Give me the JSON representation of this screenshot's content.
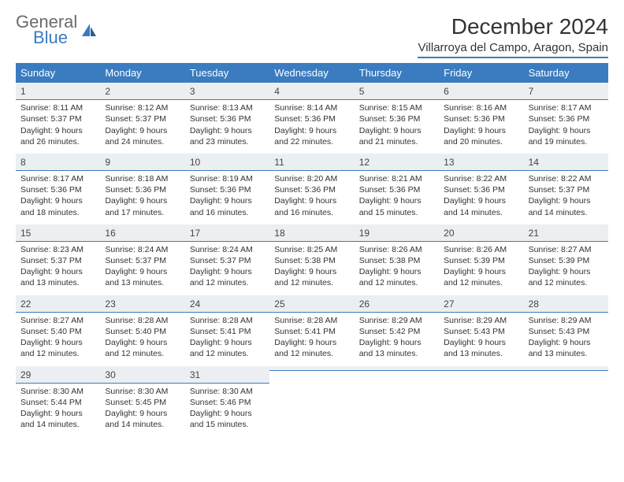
{
  "brand": {
    "line1": "General",
    "line2": "Blue"
  },
  "title": "December 2024",
  "location": "Villarroya del Campo, Aragon, Spain",
  "colors": {
    "accent": "#3b7bbf",
    "header_bg": "#3b7bbf",
    "daynum_bg": "#eceff1",
    "text": "#333333"
  },
  "day_names": [
    "Sunday",
    "Monday",
    "Tuesday",
    "Wednesday",
    "Thursday",
    "Friday",
    "Saturday"
  ],
  "weeks": [
    [
      {
        "n": "1",
        "sr": "Sunrise: 8:11 AM",
        "ss": "Sunset: 5:37 PM",
        "d1": "Daylight: 9 hours",
        "d2": "and 26 minutes."
      },
      {
        "n": "2",
        "sr": "Sunrise: 8:12 AM",
        "ss": "Sunset: 5:37 PM",
        "d1": "Daylight: 9 hours",
        "d2": "and 24 minutes."
      },
      {
        "n": "3",
        "sr": "Sunrise: 8:13 AM",
        "ss": "Sunset: 5:36 PM",
        "d1": "Daylight: 9 hours",
        "d2": "and 23 minutes."
      },
      {
        "n": "4",
        "sr": "Sunrise: 8:14 AM",
        "ss": "Sunset: 5:36 PM",
        "d1": "Daylight: 9 hours",
        "d2": "and 22 minutes."
      },
      {
        "n": "5",
        "sr": "Sunrise: 8:15 AM",
        "ss": "Sunset: 5:36 PM",
        "d1": "Daylight: 9 hours",
        "d2": "and 21 minutes."
      },
      {
        "n": "6",
        "sr": "Sunrise: 8:16 AM",
        "ss": "Sunset: 5:36 PM",
        "d1": "Daylight: 9 hours",
        "d2": "and 20 minutes."
      },
      {
        "n": "7",
        "sr": "Sunrise: 8:17 AM",
        "ss": "Sunset: 5:36 PM",
        "d1": "Daylight: 9 hours",
        "d2": "and 19 minutes."
      }
    ],
    [
      {
        "n": "8",
        "sr": "Sunrise: 8:17 AM",
        "ss": "Sunset: 5:36 PM",
        "d1": "Daylight: 9 hours",
        "d2": "and 18 minutes."
      },
      {
        "n": "9",
        "sr": "Sunrise: 8:18 AM",
        "ss": "Sunset: 5:36 PM",
        "d1": "Daylight: 9 hours",
        "d2": "and 17 minutes."
      },
      {
        "n": "10",
        "sr": "Sunrise: 8:19 AM",
        "ss": "Sunset: 5:36 PM",
        "d1": "Daylight: 9 hours",
        "d2": "and 16 minutes."
      },
      {
        "n": "11",
        "sr": "Sunrise: 8:20 AM",
        "ss": "Sunset: 5:36 PM",
        "d1": "Daylight: 9 hours",
        "d2": "and 16 minutes."
      },
      {
        "n": "12",
        "sr": "Sunrise: 8:21 AM",
        "ss": "Sunset: 5:36 PM",
        "d1": "Daylight: 9 hours",
        "d2": "and 15 minutes."
      },
      {
        "n": "13",
        "sr": "Sunrise: 8:22 AM",
        "ss": "Sunset: 5:36 PM",
        "d1": "Daylight: 9 hours",
        "d2": "and 14 minutes."
      },
      {
        "n": "14",
        "sr": "Sunrise: 8:22 AM",
        "ss": "Sunset: 5:37 PM",
        "d1": "Daylight: 9 hours",
        "d2": "and 14 minutes."
      }
    ],
    [
      {
        "n": "15",
        "sr": "Sunrise: 8:23 AM",
        "ss": "Sunset: 5:37 PM",
        "d1": "Daylight: 9 hours",
        "d2": "and 13 minutes."
      },
      {
        "n": "16",
        "sr": "Sunrise: 8:24 AM",
        "ss": "Sunset: 5:37 PM",
        "d1": "Daylight: 9 hours",
        "d2": "and 13 minutes."
      },
      {
        "n": "17",
        "sr": "Sunrise: 8:24 AM",
        "ss": "Sunset: 5:37 PM",
        "d1": "Daylight: 9 hours",
        "d2": "and 12 minutes."
      },
      {
        "n": "18",
        "sr": "Sunrise: 8:25 AM",
        "ss": "Sunset: 5:38 PM",
        "d1": "Daylight: 9 hours",
        "d2": "and 12 minutes."
      },
      {
        "n": "19",
        "sr": "Sunrise: 8:26 AM",
        "ss": "Sunset: 5:38 PM",
        "d1": "Daylight: 9 hours",
        "d2": "and 12 minutes."
      },
      {
        "n": "20",
        "sr": "Sunrise: 8:26 AM",
        "ss": "Sunset: 5:39 PM",
        "d1": "Daylight: 9 hours",
        "d2": "and 12 minutes."
      },
      {
        "n": "21",
        "sr": "Sunrise: 8:27 AM",
        "ss": "Sunset: 5:39 PM",
        "d1": "Daylight: 9 hours",
        "d2": "and 12 minutes."
      }
    ],
    [
      {
        "n": "22",
        "sr": "Sunrise: 8:27 AM",
        "ss": "Sunset: 5:40 PM",
        "d1": "Daylight: 9 hours",
        "d2": "and 12 minutes."
      },
      {
        "n": "23",
        "sr": "Sunrise: 8:28 AM",
        "ss": "Sunset: 5:40 PM",
        "d1": "Daylight: 9 hours",
        "d2": "and 12 minutes."
      },
      {
        "n": "24",
        "sr": "Sunrise: 8:28 AM",
        "ss": "Sunset: 5:41 PM",
        "d1": "Daylight: 9 hours",
        "d2": "and 12 minutes."
      },
      {
        "n": "25",
        "sr": "Sunrise: 8:28 AM",
        "ss": "Sunset: 5:41 PM",
        "d1": "Daylight: 9 hours",
        "d2": "and 12 minutes."
      },
      {
        "n": "26",
        "sr": "Sunrise: 8:29 AM",
        "ss": "Sunset: 5:42 PM",
        "d1": "Daylight: 9 hours",
        "d2": "and 13 minutes."
      },
      {
        "n": "27",
        "sr": "Sunrise: 8:29 AM",
        "ss": "Sunset: 5:43 PM",
        "d1": "Daylight: 9 hours",
        "d2": "and 13 minutes."
      },
      {
        "n": "28",
        "sr": "Sunrise: 8:29 AM",
        "ss": "Sunset: 5:43 PM",
        "d1": "Daylight: 9 hours",
        "d2": "and 13 minutes."
      }
    ],
    [
      {
        "n": "29",
        "sr": "Sunrise: 8:30 AM",
        "ss": "Sunset: 5:44 PM",
        "d1": "Daylight: 9 hours",
        "d2": "and 14 minutes."
      },
      {
        "n": "30",
        "sr": "Sunrise: 8:30 AM",
        "ss": "Sunset: 5:45 PM",
        "d1": "Daylight: 9 hours",
        "d2": "and 14 minutes."
      },
      {
        "n": "31",
        "sr": "Sunrise: 8:30 AM",
        "ss": "Sunset: 5:46 PM",
        "d1": "Daylight: 9 hours",
        "d2": "and 15 minutes."
      },
      {
        "n": "",
        "sr": "",
        "ss": "",
        "d1": "",
        "d2": ""
      },
      {
        "n": "",
        "sr": "",
        "ss": "",
        "d1": "",
        "d2": ""
      },
      {
        "n": "",
        "sr": "",
        "ss": "",
        "d1": "",
        "d2": ""
      },
      {
        "n": "",
        "sr": "",
        "ss": "",
        "d1": "",
        "d2": ""
      }
    ]
  ]
}
